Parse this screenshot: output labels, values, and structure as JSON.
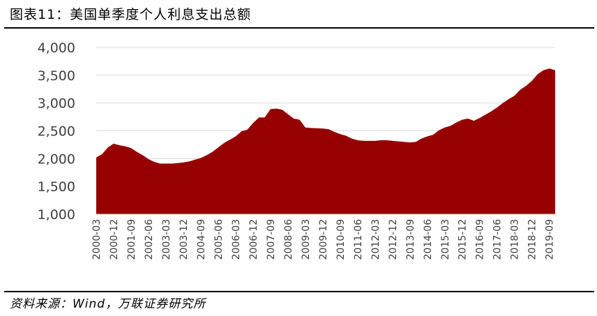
{
  "header": {
    "title": "图表11：美国单季度个人利息支出总额"
  },
  "footer": {
    "source": "资料来源：Wind，万联证券研究所"
  },
  "colors": {
    "area": "#970000",
    "text": "#404040",
    "rule": "#000000",
    "grid": "#d9d9d9"
  },
  "chart_data": {
    "type": "area",
    "title": "",
    "xlabel": "",
    "ylabel": "",
    "ylim": [
      1000,
      4000
    ],
    "yticks": [
      1000,
      1500,
      2000,
      2500,
      3000,
      3500,
      4000
    ],
    "ytick_labels": [
      "1,000",
      "1,500",
      "2,000",
      "2,500",
      "3,000",
      "3,500",
      "4,000"
    ],
    "grid": true,
    "legend": "none",
    "xtick_labels": [
      "2000-03",
      "2000-12",
      "2001-09",
      "2002-06",
      "2003-03",
      "2003-12",
      "2004-09",
      "2005-06",
      "2006-03",
      "2006-12",
      "2007-09",
      "2008-06",
      "2009-03",
      "2009-12",
      "2010-09",
      "2011-06",
      "2012-03",
      "2012-12",
      "2013-09",
      "2014-06",
      "2015-03",
      "2015-12",
      "2016-09",
      "2017-06",
      "2018-03",
      "2018-12",
      "2019-09"
    ],
    "x": [
      "2000-03",
      "2000-06",
      "2000-09",
      "2000-12",
      "2001-03",
      "2001-06",
      "2001-09",
      "2001-12",
      "2002-03",
      "2002-06",
      "2002-09",
      "2002-12",
      "2003-03",
      "2003-06",
      "2003-09",
      "2003-12",
      "2004-03",
      "2004-06",
      "2004-09",
      "2004-12",
      "2005-03",
      "2005-06",
      "2005-09",
      "2005-12",
      "2006-03",
      "2006-06",
      "2006-09",
      "2006-12",
      "2007-03",
      "2007-06",
      "2007-09",
      "2007-12",
      "2008-03",
      "2008-06",
      "2008-09",
      "2008-12",
      "2009-03",
      "2009-06",
      "2009-09",
      "2009-12",
      "2010-03",
      "2010-06",
      "2010-09",
      "2010-12",
      "2011-03",
      "2011-06",
      "2011-09",
      "2011-12",
      "2012-03",
      "2012-06",
      "2012-09",
      "2012-12",
      "2013-03",
      "2013-06",
      "2013-09",
      "2013-12",
      "2014-03",
      "2014-06",
      "2014-09",
      "2014-12",
      "2015-03",
      "2015-06",
      "2015-09",
      "2015-12",
      "2016-03",
      "2016-06",
      "2016-09",
      "2016-12",
      "2017-03",
      "2017-06",
      "2017-09",
      "2017-12",
      "2018-03",
      "2018-06",
      "2018-09",
      "2018-12",
      "2019-03",
      "2019-06",
      "2019-09",
      "2019-12"
    ],
    "series": [
      {
        "values": [
          2020,
          2080,
          2200,
          2270,
          2240,
          2220,
          2190,
          2120,
          2060,
          1990,
          1940,
          1910,
          1910,
          1910,
          1920,
          1930,
          1950,
          1980,
          2010,
          2060,
          2120,
          2200,
          2280,
          2340,
          2400,
          2490,
          2520,
          2640,
          2740,
          2740,
          2890,
          2900,
          2880,
          2800,
          2720,
          2700,
          2560,
          2550,
          2545,
          2540,
          2530,
          2480,
          2440,
          2410,
          2360,
          2330,
          2320,
          2320,
          2320,
          2330,
          2330,
          2320,
          2310,
          2300,
          2290,
          2300,
          2360,
          2400,
          2430,
          2510,
          2560,
          2590,
          2650,
          2700,
          2720,
          2680,
          2730,
          2790,
          2850,
          2920,
          3000,
          3070,
          3130,
          3240,
          3310,
          3400,
          3520,
          3590,
          3620,
          3590
        ]
      }
    ]
  }
}
